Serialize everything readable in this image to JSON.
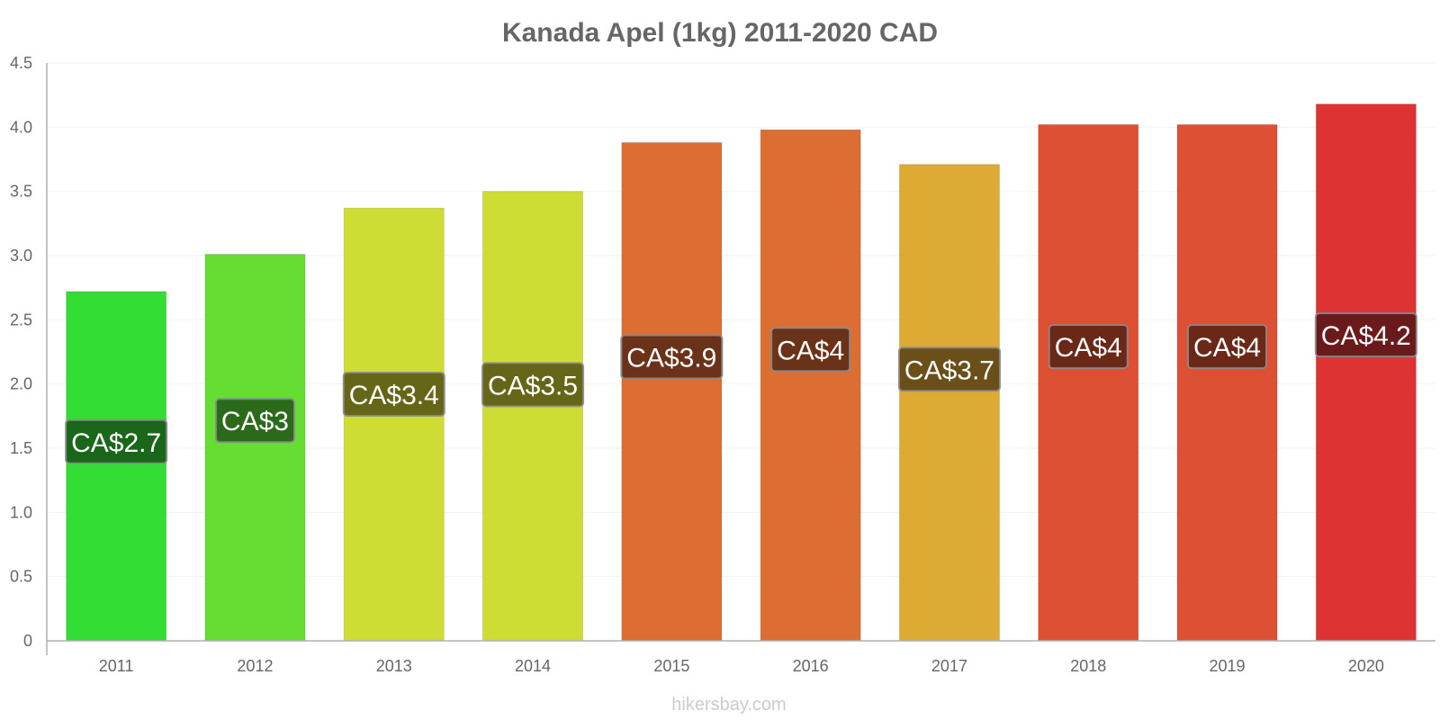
{
  "chart_data": {
    "type": "bar",
    "title": "Kanada Apel (1kg) 2011-2020 CAD",
    "xlabel": "",
    "ylabel": "",
    "ylim": [
      0,
      4.5
    ],
    "yticks": [
      "0",
      "0.5",
      "1.0",
      "1.5",
      "2.0",
      "2.5",
      "3.0",
      "3.5",
      "4.0",
      "4.5"
    ],
    "yticks_values": [
      0,
      0.5,
      1.0,
      1.5,
      2.0,
      2.5,
      3.0,
      3.5,
      4.0,
      4.5
    ],
    "categories": [
      "2011",
      "2012",
      "2013",
      "2014",
      "2015",
      "2016",
      "2017",
      "2018",
      "2019",
      "2020"
    ],
    "values": [
      2.72,
      3.01,
      3.37,
      3.5,
      3.88,
      3.98,
      3.71,
      4.02,
      4.02,
      4.18
    ],
    "data_labels": [
      "CA$2.7",
      "CA$3",
      "CA$3.4",
      "CA$3.5",
      "CA$3.9",
      "CA$4",
      "CA$3.7",
      "CA$4",
      "CA$4",
      "CA$4.2"
    ],
    "bar_colors": [
      "#33dd33",
      "#66dd33",
      "#cedd33",
      "#cedd33",
      "#dd6e33",
      "#dd6e33",
      "#ddaa33",
      "#dd5033",
      "#dd5033",
      "#dd3333"
    ],
    "label_colors": [
      "#1a661a",
      "#2a6a1a",
      "#666618",
      "#666618",
      "#6a3218",
      "#6a3218",
      "#6a5018",
      "#6a2818",
      "#6a2818",
      "#6a1a1a"
    ],
    "grid": true
  },
  "watermark": "hikersbay.com"
}
